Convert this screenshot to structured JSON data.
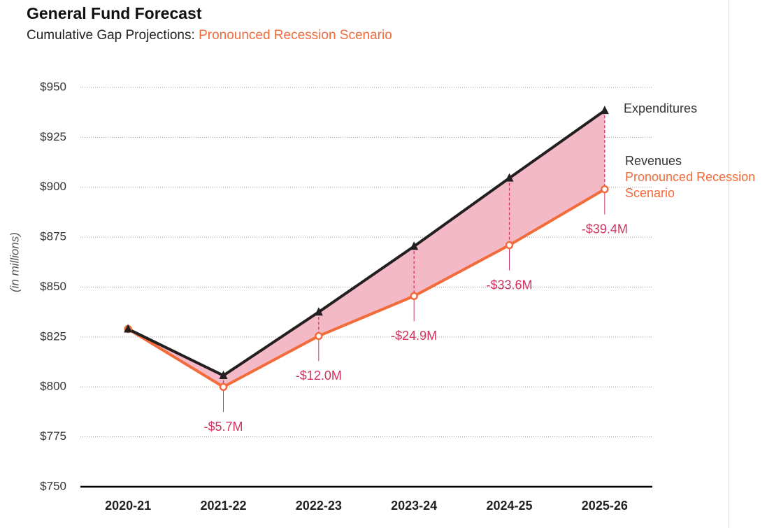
{
  "chart_data": {
    "type": "line",
    "title": "General Fund Forecast",
    "subtitle": "Cumulative Gap Projections: ",
    "scenario": "Pronounced Recession Scenario",
    "y_label": "(in millions)",
    "categories": [
      "2020-21",
      "2021-22",
      "2022-23",
      "2023-24",
      "2024-25",
      "2025-26"
    ],
    "series": [
      {
        "name": "Expenditures",
        "color": "#231f20",
        "values": [
          829,
          805.7,
          837.5,
          870.4,
          904.6,
          938.4
        ]
      },
      {
        "name": "Revenues",
        "color": "#f26b3a",
        "values": [
          829,
          800,
          825.5,
          845.5,
          871,
          899
        ]
      }
    ],
    "gaps": {
      "color": "#d0335f",
      "fill": "#f4b9c6",
      "values": [
        null,
        -5.7,
        -12.0,
        -24.9,
        -33.6,
        -39.4
      ],
      "value_labels": [
        null,
        "-$5.7M",
        "-$12.0M",
        "-$24.9M",
        "-$33.6M",
        "-$39.4M"
      ]
    },
    "ylim": [
      750,
      950
    ],
    "yticks": [
      {
        "value": 750,
        "label": "$750"
      },
      {
        "value": 775,
        "label": "$775"
      },
      {
        "value": 800,
        "label": "$800"
      },
      {
        "value": 825,
        "label": "$825"
      },
      {
        "value": 850,
        "label": "$850"
      },
      {
        "value": 875,
        "label": "$875"
      },
      {
        "value": 900,
        "label": "$900"
      },
      {
        "value": 925,
        "label": "$925"
      },
      {
        "value": 950,
        "label": "$950"
      }
    ],
    "grid": true
  }
}
